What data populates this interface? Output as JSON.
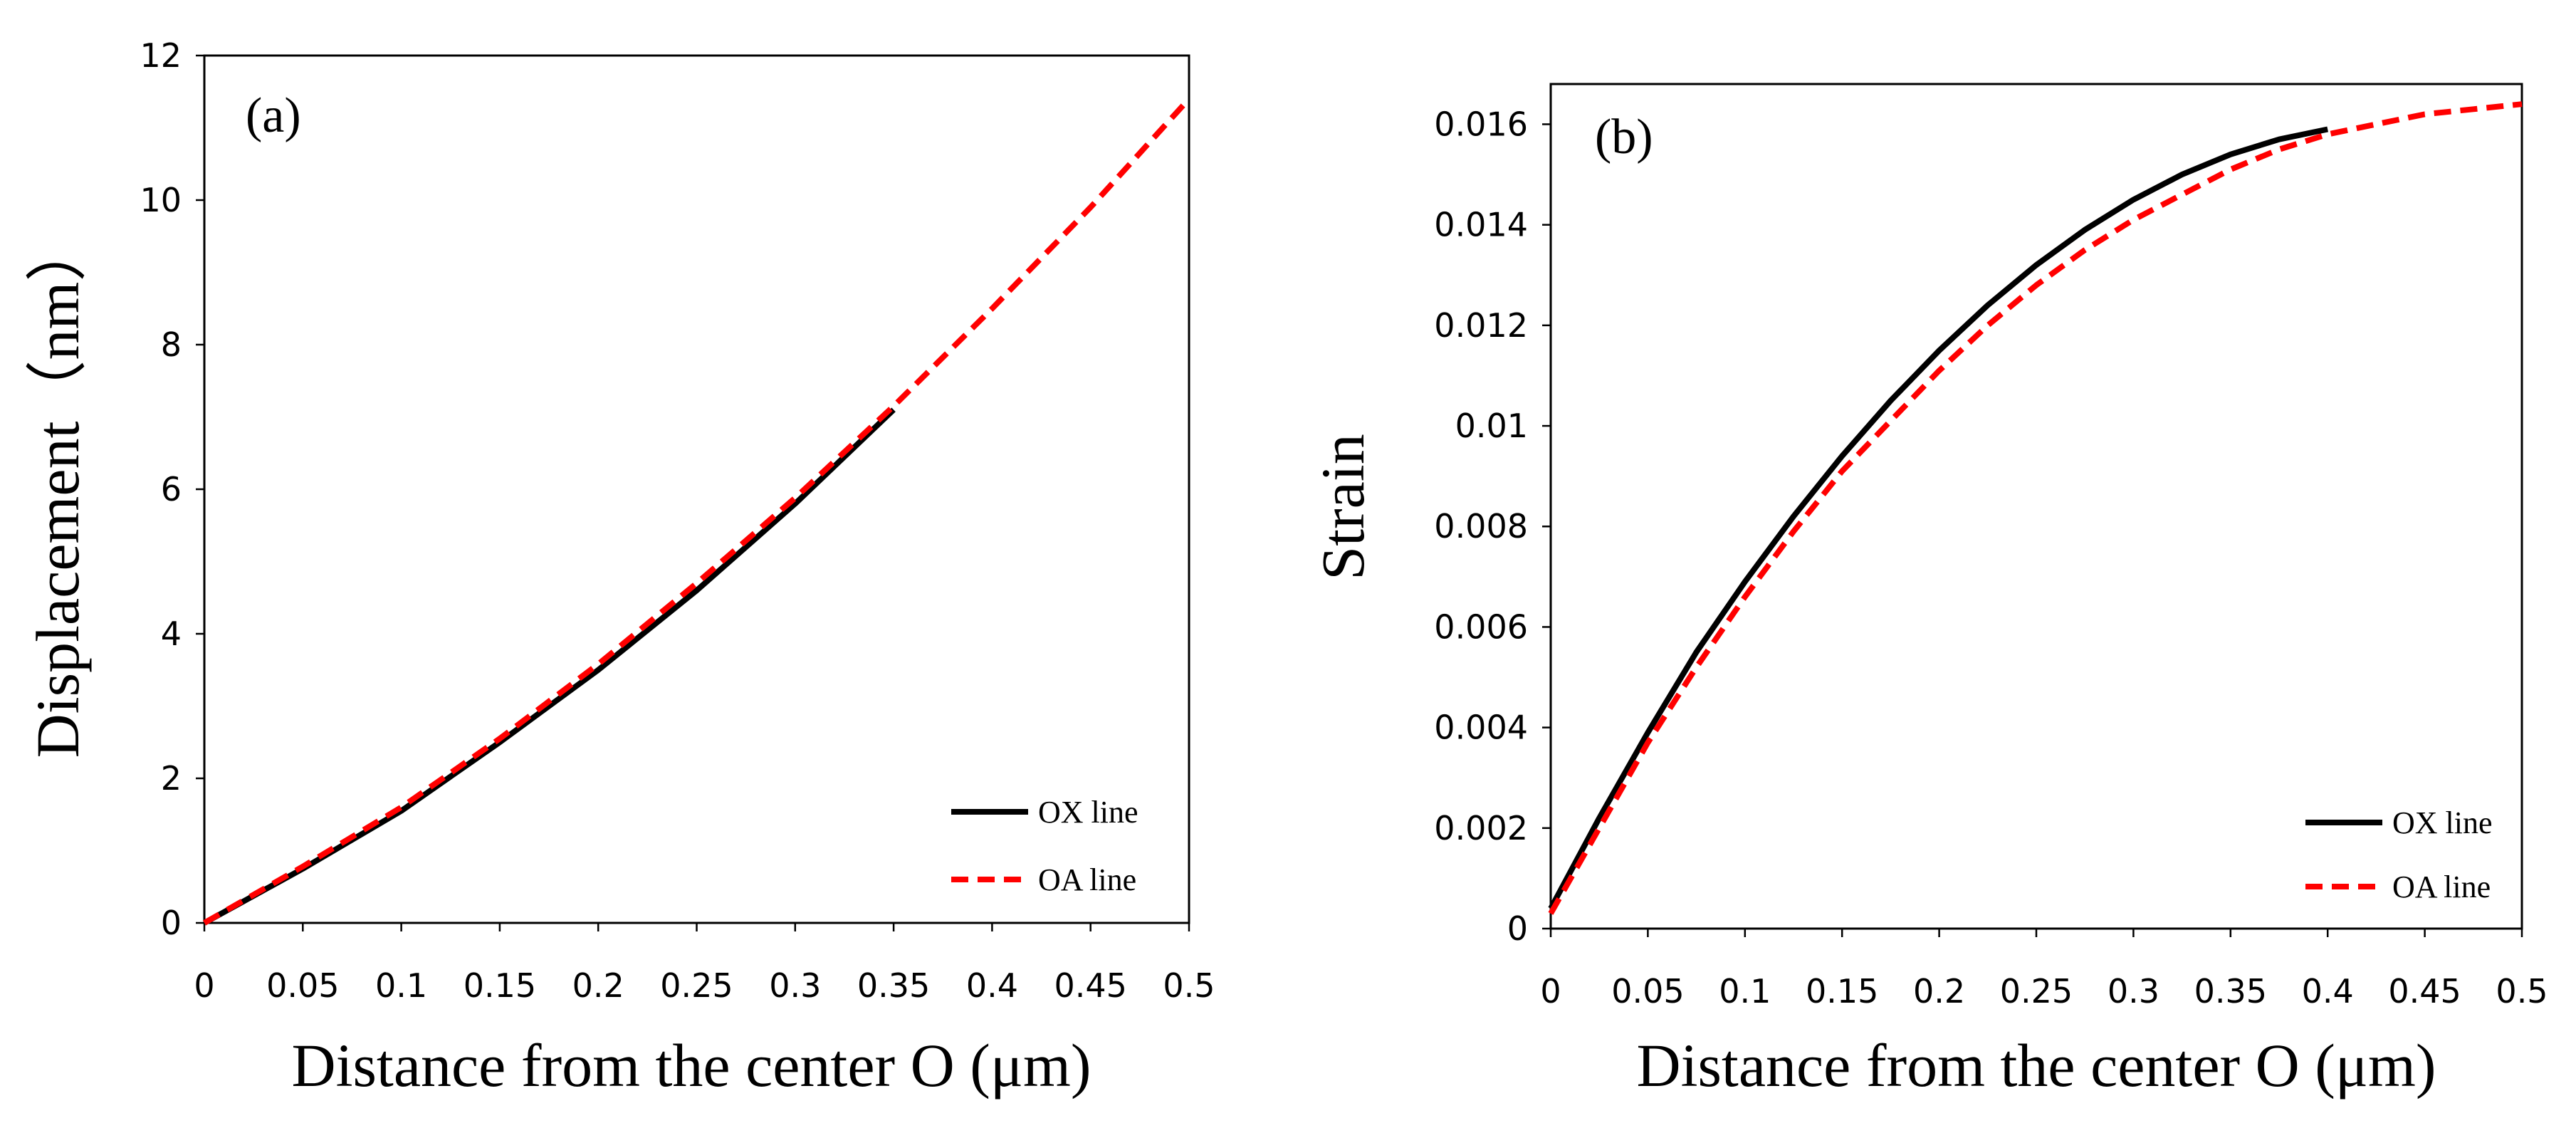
{
  "chart_data": [
    {
      "type": "line",
      "panel_label": "(a)",
      "title": "",
      "xlabel": "Distance from the center O (μm)",
      "ylabel": "Displacement（nm）",
      "xlim": [
        0,
        0.5
      ],
      "ylim": [
        0,
        12
      ],
      "xticks": [
        0,
        0.05,
        0.1,
        0.15,
        0.2,
        0.25,
        0.3,
        0.35,
        0.4,
        0.45,
        0.5
      ],
      "xtick_labels": [
        "0",
        "0.05",
        "0.1",
        "0.15",
        "0.2",
        "0.25",
        "0.3",
        "0.35",
        "0.4",
        "0.45",
        "0.5"
      ],
      "yticks": [
        0,
        2,
        4,
        6,
        8,
        10,
        12
      ],
      "ytick_labels": [
        "0",
        "2",
        "4",
        "6",
        "8",
        "10",
        "12"
      ],
      "grid": false,
      "legend_position": "bottom-right",
      "series": [
        {
          "name": "OX line",
          "color": "#000000",
          "style": "solid",
          "x": [
            0,
            0.05,
            0.1,
            0.15,
            0.2,
            0.25,
            0.3,
            0.35
          ],
          "y": [
            0,
            0.75,
            1.55,
            2.5,
            3.5,
            4.6,
            5.8,
            7.1
          ]
        },
        {
          "name": "OA line",
          "color": "#ff0000",
          "style": "dashed",
          "x": [
            0,
            0.05,
            0.1,
            0.15,
            0.2,
            0.25,
            0.3,
            0.35,
            0.4,
            0.45,
            0.5
          ],
          "y": [
            0,
            0.78,
            1.6,
            2.55,
            3.58,
            4.7,
            5.88,
            7.15,
            8.5,
            9.9,
            11.4
          ]
        }
      ]
    },
    {
      "type": "line",
      "panel_label": "(b)",
      "title": "",
      "xlabel": "Distance from the center O (μm)",
      "ylabel": "Strain",
      "xlim": [
        0,
        0.5
      ],
      "ylim": [
        0,
        0.0168
      ],
      "xticks": [
        0,
        0.05,
        0.1,
        0.15,
        0.2,
        0.25,
        0.3,
        0.35,
        0.4,
        0.45,
        0.5
      ],
      "xtick_labels": [
        "0",
        "0.05",
        "0.1",
        "0.15",
        "0.2",
        "0.25",
        "0.3",
        "0.35",
        "0.4",
        "0.45",
        "0.5"
      ],
      "yticks": [
        0,
        0.002,
        0.004,
        0.006,
        0.008,
        0.01,
        0.012,
        0.014,
        0.016
      ],
      "ytick_labels": [
        "0",
        "0.002",
        "0.004",
        "0.006",
        "0.008",
        "0.01",
        "0.012",
        "0.014",
        "0.016"
      ],
      "grid": false,
      "legend_position": "bottom-right",
      "series": [
        {
          "name": "OX line",
          "color": "#000000",
          "style": "solid",
          "x": [
            0,
            0.025,
            0.05,
            0.075,
            0.1,
            0.125,
            0.15,
            0.175,
            0.2,
            0.225,
            0.25,
            0.275,
            0.3,
            0.325,
            0.35,
            0.375,
            0.4
          ],
          "y": [
            0.0004,
            0.0022,
            0.0039,
            0.0055,
            0.0069,
            0.0082,
            0.0094,
            0.0105,
            0.0115,
            0.0124,
            0.0132,
            0.0139,
            0.0145,
            0.015,
            0.0154,
            0.0157,
            0.0159
          ]
        },
        {
          "name": "OA line",
          "color": "#ff0000",
          "style": "dashed",
          "x": [
            0,
            0.025,
            0.05,
            0.075,
            0.1,
            0.125,
            0.15,
            0.175,
            0.2,
            0.225,
            0.25,
            0.275,
            0.3,
            0.325,
            0.35,
            0.375,
            0.4,
            0.425,
            0.45,
            0.475,
            0.5
          ],
          "y": [
            0.0003,
            0.002,
            0.0037,
            0.0052,
            0.0066,
            0.0079,
            0.0091,
            0.0101,
            0.0111,
            0.012,
            0.0128,
            0.0135,
            0.0141,
            0.0146,
            0.0151,
            0.0155,
            0.0158,
            0.016,
            0.0162,
            0.0163,
            0.0164
          ]
        }
      ]
    }
  ]
}
